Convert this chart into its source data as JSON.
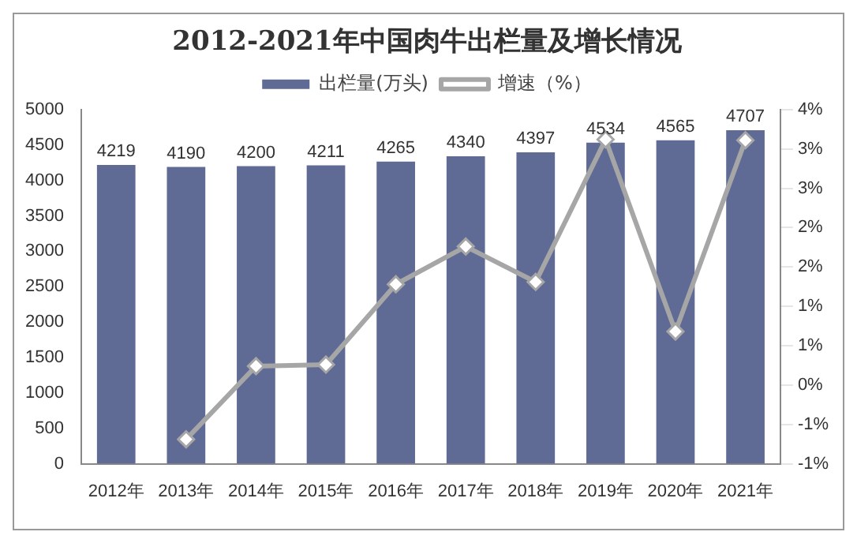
{
  "chart_data": {
    "type": "bar",
    "title": "2012-2021年中国肉牛出栏量及增长情况",
    "categories": [
      "2012年",
      "2013年",
      "2014年",
      "2015年",
      "2016年",
      "2017年",
      "2018年",
      "2019年",
      "2020年",
      "2021年"
    ],
    "series": [
      {
        "name": "出栏量(万头)",
        "color": "#5f6b94",
        "values": [
          4219,
          4190,
          4200,
          4211,
          4265,
          4340,
          4397,
          4534,
          4565,
          4707
        ],
        "data_labels": true
      },
      {
        "name": "增速（%）",
        "type": "line",
        "axis": "y2",
        "color": "#a6a6a6",
        "marker": "diamond",
        "line_style": "solid",
        "values": [
          null,
          -0.69,
          0.24,
          0.26,
          1.28,
          1.76,
          1.31,
          3.12,
          0.68,
          3.11
        ]
      }
    ],
    "ylim": [
      0,
      5000
    ],
    "yticks": [
      0,
      500,
      1000,
      1500,
      2000,
      2500,
      3000,
      3500,
      4000,
      4500,
      5000
    ],
    "y2lim": [
      -1,
      3.5
    ],
    "y2ticks": [
      {
        "value": -1,
        "label": "-1%"
      },
      {
        "value": -0.5,
        "label": "-1%"
      },
      {
        "value": 0,
        "label": "0%"
      },
      {
        "value": 0.5,
        "label": "1%"
      },
      {
        "value": 1,
        "label": "1%"
      },
      {
        "value": 1.5,
        "label": "2%"
      },
      {
        "value": 2,
        "label": "2%"
      },
      {
        "value": 2.5,
        "label": "3%"
      },
      {
        "value": 3,
        "label": "3%"
      },
      {
        "value": 3.5,
        "label": "4%"
      }
    ],
    "legend": "top",
    "grid": false
  }
}
